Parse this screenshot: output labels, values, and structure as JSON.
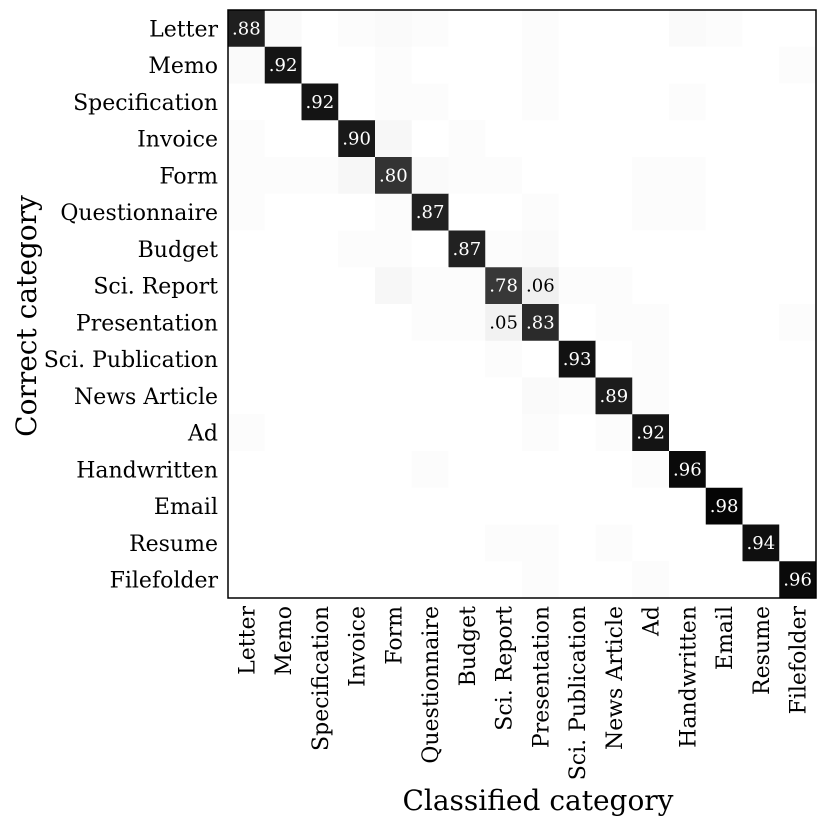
{
  "chart_data": {
    "type": "heatmap",
    "title": "",
    "xlabel": "Classified category",
    "ylabel": "Correct category",
    "row_labels": [
      "Letter",
      "Memo",
      "Specification",
      "Invoice",
      "Form",
      "Questionnaire",
      "Budget",
      "Sci. Report",
      "Presentation",
      "Sci. Publication",
      "News Article",
      "Ad",
      "Handwritten",
      "Email",
      "Resume",
      "Filefolder"
    ],
    "col_labels": [
      "Letter",
      "Memo",
      "Specification",
      "Invoice",
      "Form",
      "Questionnaire",
      "Budget",
      "Sci. Report",
      "Presentation",
      "Sci. Publication",
      "News Article",
      "Ad",
      "Handwritten",
      "Email",
      "Resume",
      "Filefolder"
    ],
    "values": [
      [
        0.88,
        0.02,
        0.0,
        0.01,
        0.02,
        0.01,
        0.0,
        0.0,
        0.01,
        0.0,
        0.0,
        0.0,
        0.02,
        0.01,
        0.0,
        0.0
      ],
      [
        0.02,
        0.92,
        0.0,
        0.0,
        0.01,
        0.0,
        0.0,
        0.0,
        0.01,
        0.0,
        0.0,
        0.0,
        0.0,
        0.0,
        0.0,
        0.01
      ],
      [
        0.0,
        0.0,
        0.92,
        0.0,
        0.01,
        0.01,
        0.0,
        0.0,
        0.01,
        0.0,
        0.0,
        0.0,
        0.01,
        0.0,
        0.0,
        0.0
      ],
      [
        0.01,
        0.0,
        0.0,
        0.9,
        0.03,
        0.0,
        0.01,
        0.0,
        0.0,
        0.0,
        0.0,
        0.0,
        0.0,
        0.0,
        0.0,
        0.0
      ],
      [
        0.01,
        0.01,
        0.01,
        0.03,
        0.8,
        0.02,
        0.01,
        0.01,
        0.0,
        0.0,
        0.0,
        0.01,
        0.01,
        0.0,
        0.0,
        0.0
      ],
      [
        0.01,
        0.0,
        0.0,
        0.0,
        0.01,
        0.87,
        0.0,
        0.0,
        0.01,
        0.0,
        0.0,
        0.01,
        0.01,
        0.0,
        0.0,
        0.0
      ],
      [
        0.0,
        0.0,
        0.0,
        0.01,
        0.01,
        0.0,
        0.87,
        0.01,
        0.02,
        0.0,
        0.0,
        0.0,
        0.0,
        0.0,
        0.0,
        0.0
      ],
      [
        0.0,
        0.0,
        0.0,
        0.0,
        0.03,
        0.01,
        0.01,
        0.78,
        0.06,
        0.01,
        0.01,
        0.0,
        0.0,
        0.0,
        0.0,
        0.0
      ],
      [
        0.0,
        0.0,
        0.0,
        0.0,
        0.0,
        0.01,
        0.01,
        0.05,
        0.83,
        0.0,
        0.01,
        0.01,
        0.0,
        0.0,
        0.0,
        0.01
      ],
      [
        0.0,
        0.0,
        0.0,
        0.0,
        0.0,
        0.0,
        0.0,
        0.01,
        0.0,
        0.93,
        0.0,
        0.01,
        0.0,
        0.0,
        0.0,
        0.0
      ],
      [
        0.0,
        0.0,
        0.0,
        0.0,
        0.0,
        0.0,
        0.0,
        0.0,
        0.02,
        0.01,
        0.89,
        0.01,
        0.0,
        0.0,
        0.0,
        0.0
      ],
      [
        0.01,
        0.0,
        0.0,
        0.0,
        0.0,
        0.0,
        0.0,
        0.0,
        0.01,
        0.0,
        0.01,
        0.92,
        0.0,
        0.0,
        0.0,
        0.0
      ],
      [
        0.0,
        0.0,
        0.0,
        0.0,
        0.0,
        0.01,
        0.0,
        0.0,
        0.0,
        0.0,
        0.0,
        0.01,
        0.96,
        0.0,
        0.0,
        0.0
      ],
      [
        0.0,
        0.0,
        0.0,
        0.0,
        0.0,
        0.0,
        0.0,
        0.0,
        0.0,
        0.0,
        0.0,
        0.0,
        0.0,
        0.98,
        0.0,
        0.0
      ],
      [
        0.0,
        0.0,
        0.0,
        0.0,
        0.0,
        0.0,
        0.0,
        0.01,
        0.01,
        0.0,
        0.01,
        0.0,
        0.0,
        0.0,
        0.94,
        0.0
      ],
      [
        0.0,
        0.0,
        0.0,
        0.0,
        0.0,
        0.0,
        0.0,
        0.0,
        0.01,
        0.0,
        0.0,
        0.01,
        0.0,
        0.0,
        0.0,
        0.96
      ]
    ],
    "cell_labels": [
      {
        "row": 0,
        "col": 0,
        "text": ".88"
      },
      {
        "row": 1,
        "col": 1,
        "text": ".92"
      },
      {
        "row": 2,
        "col": 2,
        "text": ".92"
      },
      {
        "row": 3,
        "col": 3,
        "text": ".90"
      },
      {
        "row": 4,
        "col": 4,
        "text": ".80"
      },
      {
        "row": 5,
        "col": 5,
        "text": ".87"
      },
      {
        "row": 6,
        "col": 6,
        "text": ".87"
      },
      {
        "row": 7,
        "col": 7,
        "text": ".78"
      },
      {
        "row": 7,
        "col": 8,
        "text": ".06"
      },
      {
        "row": 8,
        "col": 7,
        "text": ".05"
      },
      {
        "row": 8,
        "col": 8,
        "text": ".83"
      },
      {
        "row": 9,
        "col": 9,
        "text": ".93"
      },
      {
        "row": 10,
        "col": 10,
        "text": ".89"
      },
      {
        "row": 11,
        "col": 11,
        "text": ".92"
      },
      {
        "row": 12,
        "col": 12,
        "text": ".96"
      },
      {
        "row": 13,
        "col": 13,
        "text": ".98"
      },
      {
        "row": 14,
        "col": 14,
        "text": ".94"
      },
      {
        "row": 15,
        "col": 15,
        "text": ".96"
      }
    ],
    "colormap": "grayscale: 0 = #ffffff, 1 = #000000",
    "grid": false
  }
}
